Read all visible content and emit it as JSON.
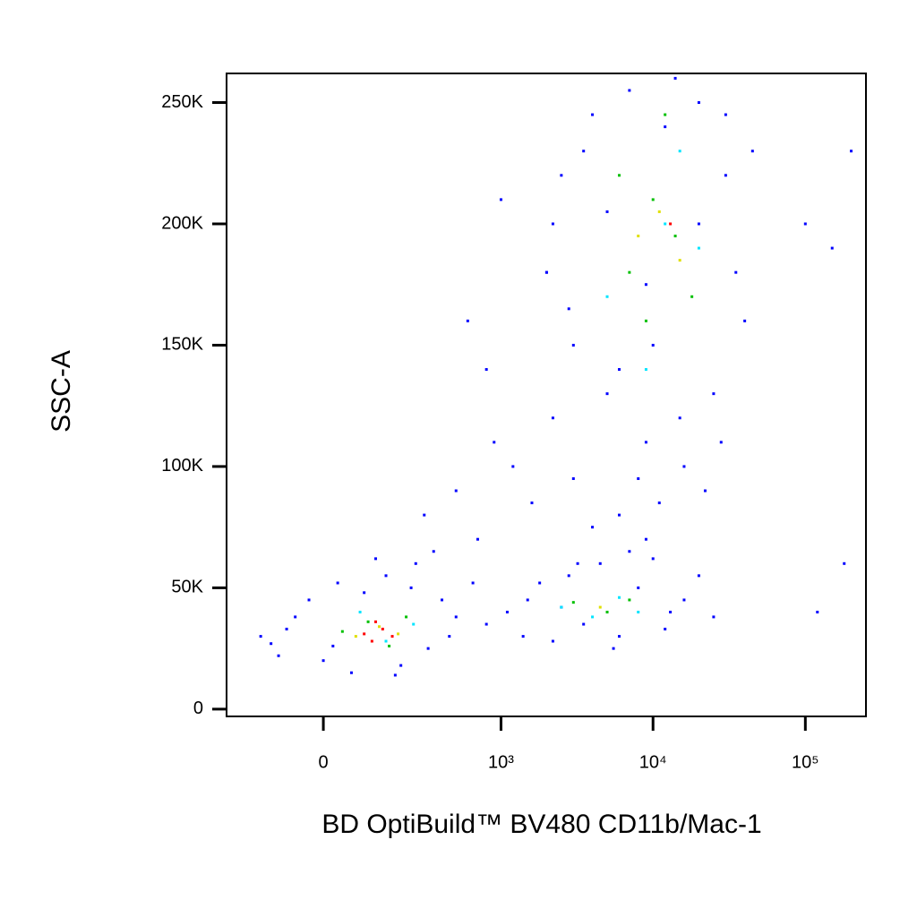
{
  "chart_data": {
    "type": "scatter",
    "x_label": "BD OptiBuild™ BV480 CD11b/Mac-1",
    "y_label": "SSC-A",
    "x_scale": "biexponential",
    "xlim": [
      -280,
      250000
    ],
    "xticks": [
      0,
      {
        "value": 1000,
        "label": "10³"
      },
      {
        "value": 10000,
        "label": "10⁴"
      },
      {
        "value": 100000,
        "label": "10⁵"
      }
    ],
    "ylim": [
      -3000,
      262000
    ],
    "yticks": [
      0,
      {
        "value": 50000,
        "label": "50K"
      },
      {
        "value": 100000,
        "label": "100K"
      },
      {
        "value": 150000,
        "label": "150K"
      },
      {
        "value": 200000,
        "label": "200K"
      },
      {
        "value": 250000,
        "label": "250K"
      }
    ],
    "series": [
      {
        "color": "#0000ff",
        "x": [
          -150,
          -100,
          -60,
          -30,
          0,
          30,
          60,
          90,
          150,
          200,
          260,
          320,
          400,
          500,
          650,
          800,
          -120,
          -80,
          20,
          120,
          180,
          240,
          350,
          450,
          1100,
          1400,
          1800,
          2200,
          2800,
          3500,
          4500,
          6000,
          8000,
          10000,
          13000,
          16000,
          20000,
          25000,
          1500,
          2500,
          3200,
          5500,
          7000,
          12000,
          300,
          500,
          700,
          900,
          1200,
          1600,
          2200,
          3000,
          4000,
          6000,
          9000,
          800,
          600,
          1000,
          2000,
          2000,
          2500,
          3000,
          4000,
          5000,
          7000,
          9000,
          12000,
          16000,
          20000,
          25000,
          30000,
          35000,
          40000,
          2200,
          2800,
          3500,
          6000,
          8000,
          11000,
          15000,
          22000,
          28000,
          45000,
          5000,
          9000,
          14000,
          20000,
          30000,
          10000,
          100000,
          150000,
          180000,
          120000,
          200000
        ],
        "y": [
          30000,
          22000,
          38000,
          45000,
          20000,
          52000,
          15000,
          48000,
          55000,
          18000,
          60000,
          25000,
          45000,
          38000,
          52000,
          35000,
          27000,
          33000,
          26000,
          62000,
          14000,
          50000,
          65000,
          30000,
          40000,
          30000,
          52000,
          28000,
          55000,
          35000,
          60000,
          30000,
          50000,
          62000,
          40000,
          45000,
          55000,
          38000,
          45000,
          42000,
          60000,
          25000,
          65000,
          33000,
          80000,
          90000,
          70000,
          110000,
          100000,
          85000,
          120000,
          95000,
          75000,
          80000,
          70000,
          140000,
          160000,
          210000,
          180000,
          180000,
          220000,
          150000,
          245000,
          130000,
          255000,
          110000,
          240000,
          100000,
          250000,
          130000,
          220000,
          180000,
          160000,
          200000,
          165000,
          230000,
          140000,
          95000,
          85000,
          120000,
          90000,
          110000,
          230000,
          205000,
          175000,
          260000,
          200000,
          245000,
          150000,
          200000,
          190000,
          60000,
          40000,
          230000
        ]
      },
      {
        "color": "#00e5ff",
        "x": [
          80,
          150,
          250,
          2500,
          4000,
          6000,
          8000,
          12000,
          5000,
          9000,
          15000,
          20000
        ],
        "y": [
          40000,
          28000,
          35000,
          42000,
          38000,
          46000,
          40000,
          200000,
          170000,
          140000,
          230000,
          190000
        ]
      },
      {
        "color": "#00c000",
        "x": [
          40,
          100,
          160,
          220,
          3000,
          5000,
          7000,
          7000,
          10000,
          14000,
          18000,
          6000,
          9000,
          12000
        ],
        "y": [
          32000,
          36000,
          26000,
          38000,
          44000,
          40000,
          45000,
          180000,
          210000,
          195000,
          170000,
          220000,
          160000,
          245000
        ]
      },
      {
        "color": "#e0e000",
        "x": [
          70,
          130,
          190,
          11000,
          15000,
          8000,
          4500
        ],
        "y": [
          30000,
          34000,
          31000,
          205000,
          185000,
          195000,
          42000
        ]
      },
      {
        "color": "#ff0000",
        "x": [
          90,
          110,
          140,
          170,
          120,
          13000
        ],
        "y": [
          31000,
          28000,
          33000,
          30000,
          36000,
          200000
        ]
      }
    ]
  }
}
